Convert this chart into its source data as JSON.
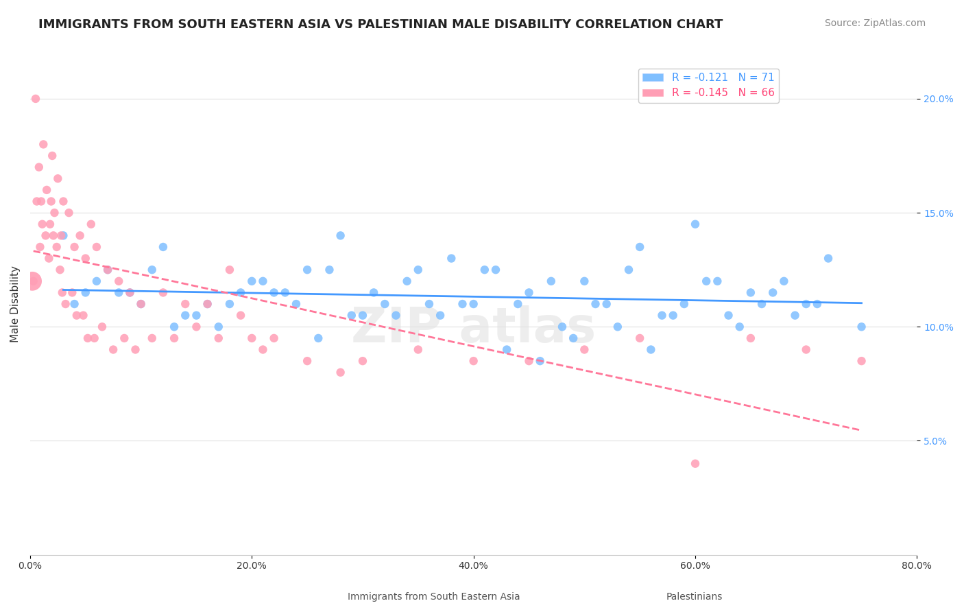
{
  "title": "IMMIGRANTS FROM SOUTH EASTERN ASIA VS PALESTINIAN MALE DISABILITY CORRELATION CHART",
  "source": "Source: ZipAtlas.com",
  "xlabel_ticks": [
    "0.0%",
    "20.0%",
    "40.0%",
    "60.0%",
    "80.0%"
  ],
  "xlabel_vals": [
    0.0,
    20.0,
    40.0,
    60.0,
    80.0
  ],
  "ylabel_ticks": [
    "5.0%",
    "10.0%",
    "15.0%",
    "20.0%"
  ],
  "ylabel_vals": [
    5.0,
    10.0,
    15.0,
    20.0
  ],
  "xlim": [
    0.0,
    80.0
  ],
  "ylim": [
    0.0,
    22.0
  ],
  "blue_label": "Immigrants from South Eastern Asia",
  "pink_label": "Palestinians",
  "blue_R": -0.121,
  "blue_N": 71,
  "pink_R": -0.145,
  "pink_N": 66,
  "blue_color": "#7FBFFF",
  "pink_color": "#FF9EB5",
  "blue_line_color": "#4499FF",
  "pink_line_color": "#FF7799",
  "watermark": "ZIPatlas",
  "background_color": "#FFFFFF",
  "grid_color": "#E8E8E8",
  "blue_scatter_x": [
    3,
    5,
    7,
    10,
    12,
    15,
    18,
    20,
    22,
    25,
    28,
    30,
    32,
    35,
    38,
    40,
    42,
    45,
    48,
    50,
    52,
    55,
    58,
    60,
    62,
    65,
    68,
    70,
    72,
    4,
    6,
    8,
    11,
    14,
    17,
    19,
    21,
    24,
    27,
    29,
    31,
    34,
    37,
    39,
    41,
    44,
    47,
    49,
    51,
    54,
    57,
    59,
    61,
    64,
    67,
    69,
    71,
    9,
    13,
    16,
    23,
    26,
    33,
    36,
    43,
    46,
    53,
    56,
    63,
    66,
    75
  ],
  "blue_scatter_y": [
    14.0,
    11.5,
    12.5,
    11.0,
    13.5,
    10.5,
    11.0,
    12.0,
    11.5,
    12.5,
    14.0,
    10.5,
    11.0,
    12.5,
    13.0,
    11.0,
    12.5,
    11.5,
    10.0,
    12.0,
    11.0,
    13.5,
    10.5,
    14.5,
    12.0,
    11.5,
    12.0,
    11.0,
    13.0,
    11.0,
    12.0,
    11.5,
    12.5,
    10.5,
    10.0,
    11.5,
    12.0,
    11.0,
    12.5,
    10.5,
    11.5,
    12.0,
    10.5,
    11.0,
    12.5,
    11.0,
    12.0,
    9.5,
    11.0,
    12.5,
    10.5,
    11.0,
    12.0,
    10.0,
    11.5,
    10.5,
    11.0,
    11.5,
    10.0,
    11.0,
    11.5,
    9.5,
    10.5,
    11.0,
    9.0,
    8.5,
    10.0,
    9.0,
    10.5,
    11.0,
    10.0
  ],
  "pink_scatter_x": [
    0.5,
    0.8,
    1.0,
    1.2,
    1.5,
    1.8,
    2.0,
    2.2,
    2.5,
    2.8,
    3.0,
    3.5,
    4.0,
    4.5,
    5.0,
    5.5,
    6.0,
    7.0,
    8.0,
    9.0,
    10.0,
    12.0,
    14.0,
    16.0,
    18.0,
    0.3,
    0.6,
    0.9,
    1.1,
    1.4,
    1.7,
    1.9,
    2.1,
    2.4,
    2.7,
    2.9,
    3.2,
    3.8,
    4.2,
    4.8,
    5.2,
    5.8,
    6.5,
    7.5,
    8.5,
    9.5,
    11.0,
    13.0,
    15.0,
    17.0,
    19.0,
    20.0,
    21.0,
    22.0,
    25.0,
    28.0,
    30.0,
    35.0,
    40.0,
    45.0,
    50.0,
    55.0,
    60.0,
    65.0,
    70.0,
    75.0
  ],
  "pink_scatter_y": [
    20.0,
    17.0,
    15.5,
    18.0,
    16.0,
    14.5,
    17.5,
    15.0,
    16.5,
    14.0,
    15.5,
    15.0,
    13.5,
    14.0,
    13.0,
    14.5,
    13.5,
    12.5,
    12.0,
    11.5,
    11.0,
    11.5,
    11.0,
    11.0,
    12.5,
    12.0,
    15.5,
    13.5,
    14.5,
    14.0,
    13.0,
    15.5,
    14.0,
    13.5,
    12.5,
    11.5,
    11.0,
    11.5,
    10.5,
    10.5,
    9.5,
    9.5,
    10.0,
    9.0,
    9.5,
    9.0,
    9.5,
    9.5,
    10.0,
    9.5,
    10.5,
    9.5,
    9.0,
    9.5,
    8.5,
    8.0,
    8.5,
    9.0,
    8.5,
    8.5,
    9.0,
    9.5,
    4.0,
    9.5,
    9.0,
    8.5
  ],
  "title_fontsize": 13,
  "source_fontsize": 10,
  "axis_label_fontsize": 11,
  "tick_fontsize": 10,
  "legend_fontsize": 11
}
